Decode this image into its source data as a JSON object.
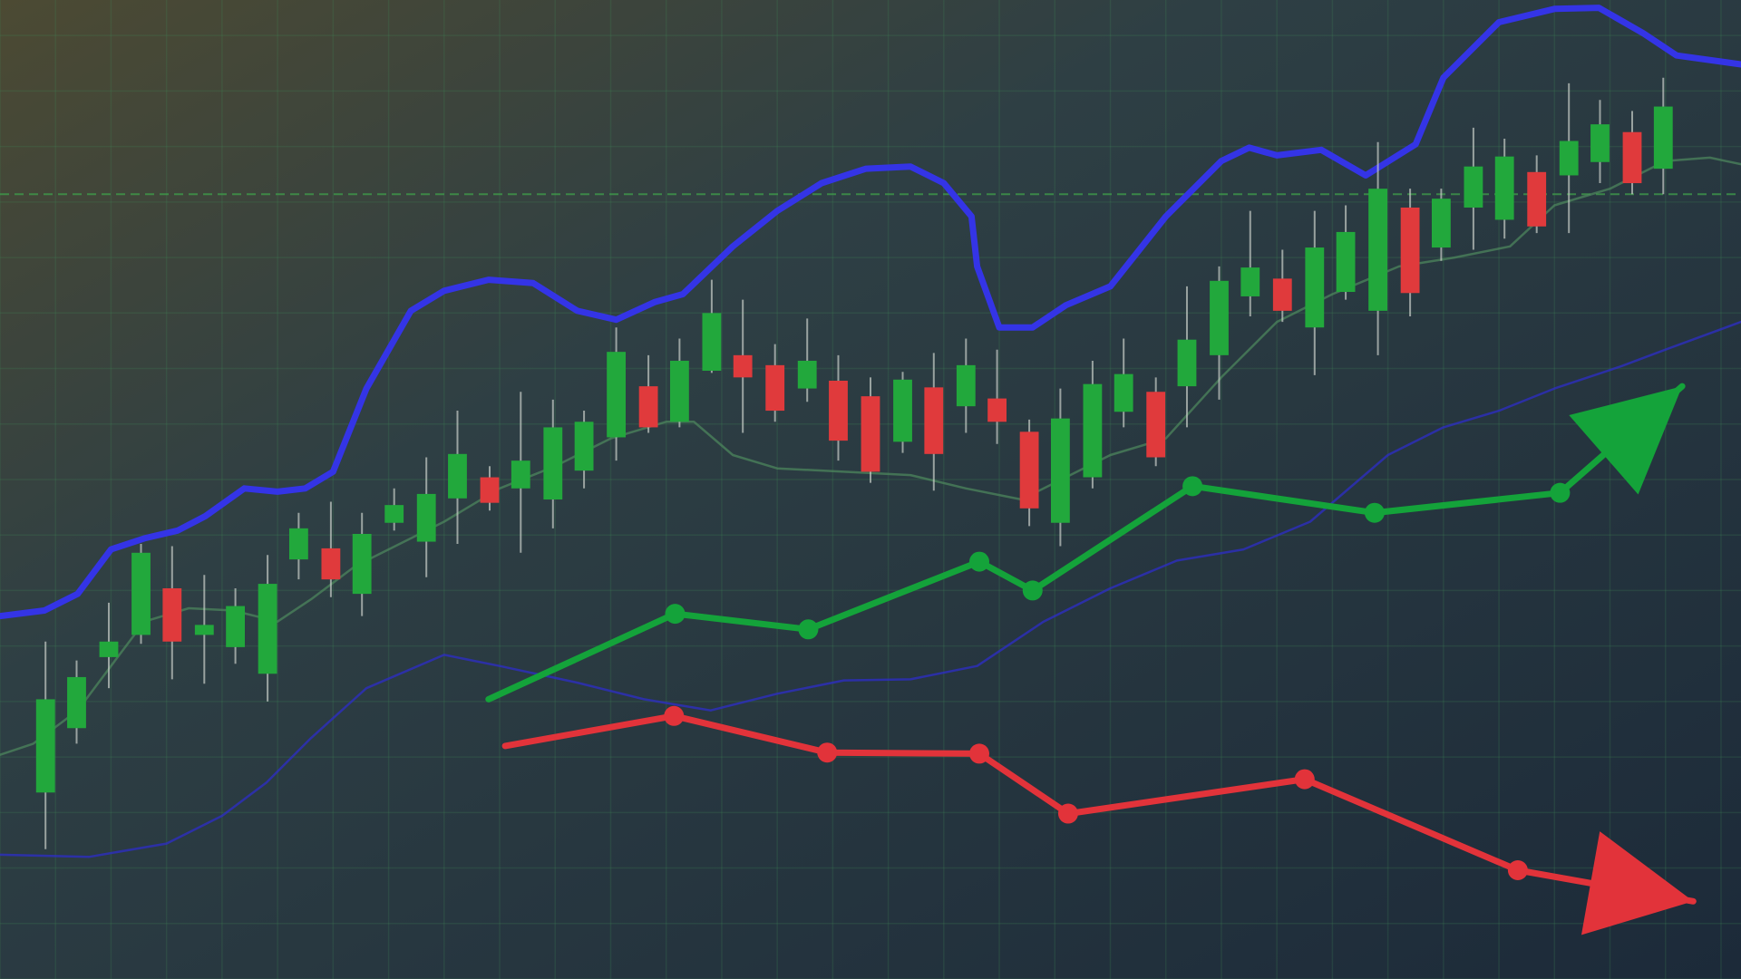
{
  "chart_data": {
    "type": "candlestick",
    "xlim": [
      0,
      156.8
    ],
    "ylim": [
      0,
      88.2
    ],
    "xticks": [
      0,
      5,
      10,
      15,
      20,
      25,
      30,
      35,
      40,
      45,
      50,
      55,
      60,
      65,
      70,
      75,
      80,
      85,
      90,
      95,
      100,
      105,
      110,
      115,
      120,
      125,
      130,
      135,
      140,
      145,
      150,
      155
    ],
    "yticks": [
      0,
      5,
      10,
      15,
      20,
      25,
      30,
      35,
      40,
      45,
      50,
      55,
      60,
      65,
      70,
      75,
      80,
      85
    ],
    "grid": true,
    "up_color": "#22a83c",
    "down_color": "#e03a3c",
    "x": [
      4.1,
      6.9,
      9.8,
      12.7,
      15.5,
      18.4,
      21.2,
      24.1,
      26.9,
      29.8,
      32.6,
      35.5,
      38.4,
      41.2,
      44.1,
      46.9,
      49.8,
      52.6,
      55.5,
      58.4,
      61.2,
      64.1,
      66.9,
      69.8,
      72.7,
      75.5,
      78.4,
      81.3,
      84.1,
      87.0,
      89.8,
      92.7,
      95.5,
      98.4,
      101.2,
      104.1,
      106.9,
      109.8,
      112.6,
      115.5,
      118.4,
      121.2,
      124.1,
      127.0,
      129.8,
      132.7,
      135.5,
      138.4,
      141.3,
      144.1,
      147.0,
      149.8
    ],
    "open": [
      16.8,
      22.6,
      29.0,
      31.0,
      35.2,
      31.0,
      29.9,
      27.5,
      37.8,
      38.8,
      34.7,
      41.1,
      39.4,
      43.3,
      45.2,
      44.2,
      43.2,
      45.8,
      48.8,
      53.4,
      50.2,
      54.8,
      56.2,
      55.3,
      53.2,
      53.9,
      52.5,
      48.4,
      53.3,
      51.6,
      52.3,
      49.3,
      41.1,
      45.2,
      51.1,
      52.9,
      53.4,
      56.2,
      61.5,
      63.1,
      58.7,
      61.9,
      60.2,
      69.5,
      65.9,
      69.5,
      68.4,
      72.7,
      72.4,
      73.6,
      76.3,
      73.0
    ],
    "high": [
      30.4,
      28.7,
      33.9,
      39.2,
      39.0,
      36.4,
      35.2,
      38.2,
      42.0,
      43.0,
      42.0,
      44.2,
      47.0,
      51.2,
      46.2,
      52.9,
      52.2,
      51.2,
      58.7,
      56.2,
      57.7,
      63.0,
      61.2,
      57.2,
      59.5,
      56.2,
      54.2,
      54.7,
      56.4,
      57.7,
      56.7,
      50.4,
      53.2,
      55.7,
      57.7,
      54.2,
      62.4,
      64.2,
      69.2,
      65.7,
      69.2,
      69.7,
      75.4,
      71.2,
      71.2,
      76.7,
      75.7,
      74.2,
      80.7,
      79.2,
      78.2,
      81.2
    ],
    "low": [
      11.7,
      21.2,
      26.2,
      30.2,
      27.0,
      26.6,
      28.4,
      25.0,
      36.0,
      34.4,
      32.7,
      40.4,
      36.2,
      39.2,
      42.2,
      38.4,
      40.6,
      44.2,
      46.7,
      49.2,
      49.7,
      54.6,
      49.2,
      50.2,
      52.0,
      46.7,
      44.7,
      47.4,
      44.0,
      49.2,
      48.2,
      40.8,
      39.0,
      44.2,
      49.7,
      46.2,
      49.7,
      52.2,
      59.7,
      59.2,
      54.4,
      61.2,
      56.2,
      59.7,
      64.7,
      65.7,
      66.7,
      67.2,
      67.2,
      71.7,
      70.7,
      70.7
    ],
    "close": [
      25.2,
      27.2,
      30.4,
      38.4,
      30.4,
      31.9,
      33.6,
      35.6,
      40.6,
      36.0,
      40.1,
      42.7,
      43.7,
      47.3,
      42.9,
      46.7,
      49.7,
      50.2,
      56.5,
      49.7,
      55.7,
      60.0,
      54.2,
      51.2,
      55.7,
      48.5,
      45.7,
      54.0,
      47.3,
      55.3,
      50.2,
      42.4,
      50.5,
      53.6,
      54.5,
      47.0,
      57.6,
      62.9,
      64.1,
      60.2,
      65.9,
      67.3,
      71.2,
      61.8,
      70.3,
      73.2,
      74.1,
      67.8,
      75.5,
      77.0,
      71.7,
      78.6
    ],
    "lines": [
      {
        "color": "#3434e6",
        "x": [
          0,
          4.0,
          7.0,
          10.0,
          13.0,
          16.0,
          18.5,
          22.0,
          25.0,
          27.5,
          30.0,
          33.0,
          37.0,
          40.0,
          44.0,
          48.0,
          52.0,
          55.5,
          59.0,
          61.5,
          66.0,
          70.0,
          74.0,
          78.0,
          82.0,
          85.0,
          87.5,
          88.0,
          90.0,
          93.0,
          96.0,
          100.0,
          105.0,
          110.0,
          112.5,
          115.0,
          119.0,
          123.0,
          127.5,
          130.0,
          135.0,
          140.0,
          144.0,
          148.0,
          151.0,
          156.8
        ],
        "values": [
          32.7,
          33.2,
          34.7,
          38.7,
          39.7,
          40.4,
          41.7,
          44.2,
          43.9,
          44.2,
          45.7,
          53.2,
          60.2,
          62.0,
          63.0,
          62.7,
          60.2,
          59.4,
          61.0,
          61.7,
          66.0,
          69.2,
          71.7,
          73.0,
          73.2,
          71.7,
          68.7,
          64.2,
          58.7,
          58.7,
          60.7,
          62.4,
          68.7,
          73.7,
          74.9,
          74.2,
          74.7,
          72.4,
          75.2,
          81.2,
          86.2,
          87.4,
          87.5,
          85.2,
          83.2,
          82.4
        ]
      },
      {
        "color": "#2e2ec8",
        "x": [
          0,
          8.0,
          15.0,
          20.0,
          24.0,
          28.0,
          33.0,
          40.0,
          45.0,
          52.0,
          58.0,
          64.0,
          70.0,
          76.0,
          82.0,
          88.0,
          94.0,
          100.0,
          106.0,
          112.0,
          118.0,
          125.0,
          130.0,
          135.0,
          140.0,
          146.0,
          150.0,
          156.8
        ],
        "values": [
          11.2,
          11.0,
          12.2,
          14.7,
          17.7,
          21.7,
          26.2,
          29.2,
          28.2,
          26.7,
          25.2,
          24.2,
          25.7,
          26.9,
          27.0,
          28.2,
          32.2,
          35.2,
          37.7,
          38.7,
          41.2,
          47.2,
          49.7,
          51.2,
          53.2,
          55.2,
          56.7,
          59.2
        ]
      },
      {
        "color": "#4f8a5e",
        "x": [
          0,
          3.0,
          7.0,
          10.0,
          13.0,
          17.0,
          21.0,
          25.0,
          28.0,
          32.0,
          36.0,
          40.0,
          45.0,
          50.0,
          55.0,
          60.0,
          62.5,
          66.0,
          70.0,
          76.0,
          82.0,
          87.0,
          92.0,
          96.0,
          100.0,
          105.0,
          110.0,
          115.0,
          120.0,
          126.0,
          131.0,
          136.0,
          140.0,
          145.0,
          150.0,
          154.0,
          156.8
        ],
        "values": [
          20.2,
          21.2,
          24.2,
          28.2,
          32.2,
          33.4,
          33.2,
          32.2,
          34.2,
          37.2,
          39.2,
          41.2,
          44.2,
          46.2,
          48.7,
          50.2,
          50.2,
          47.2,
          46.0,
          45.7,
          45.4,
          44.2,
          43.2,
          45.2,
          47.2,
          48.7,
          54.2,
          59.2,
          61.7,
          64.2,
          65.0,
          66.0,
          69.7,
          71.2,
          73.7,
          74.0,
          73.4
        ]
      }
    ],
    "trend_lines": [
      {
        "color": "#14a33a",
        "x": [
          44.0,
          60.8,
          72.8,
          88.2,
          93.0,
          107.4,
          123.8,
          140.5,
          151.5
        ],
        "values": [
          25.2,
          32.9,
          31.5,
          37.6,
          35.0,
          44.4,
          42.0,
          43.8,
          53.4
        ]
      },
      {
        "color": "#e2333a",
        "x": [
          45.5,
          60.7,
          74.5,
          88.2,
          96.2,
          117.5,
          136.7,
          152.5
        ],
        "values": [
          21.0,
          23.7,
          20.4,
          20.3,
          14.9,
          18.0,
          9.8,
          7.0
        ]
      }
    ],
    "reference_line": {
      "value": 70.7,
      "color": "#3f9a4a"
    }
  }
}
